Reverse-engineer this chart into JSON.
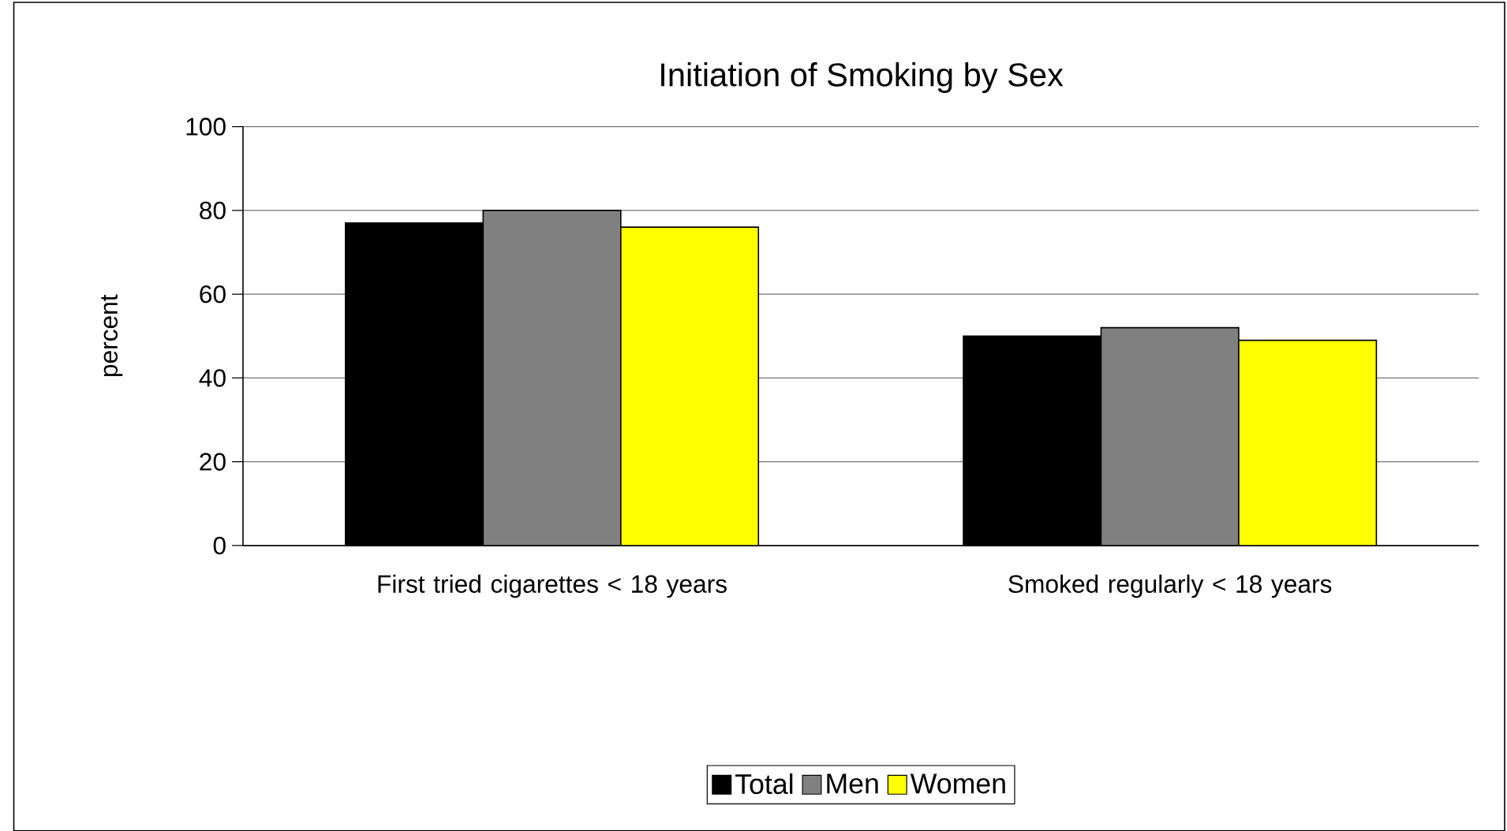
{
  "chart_data": {
    "type": "bar",
    "title": "Initiation of Smoking by Sex",
    "ylabel": "percent",
    "categories": [
      "First tried cigarettes < 18 years",
      "Smoked regularly < 18 years"
    ],
    "series": [
      {
        "name": "Total",
        "color": "#000000",
        "values": [
          77,
          50
        ]
      },
      {
        "name": "Men",
        "color": "#808080",
        "values": [
          80,
          52
        ]
      },
      {
        "name": "Women",
        "color": "#ffff00",
        "values": [
          76,
          49
        ]
      }
    ],
    "ylim": [
      0,
      100
    ],
    "yticks": [
      0,
      20,
      40,
      60,
      80,
      100
    ],
    "grid": "y",
    "legend": "bottom"
  }
}
